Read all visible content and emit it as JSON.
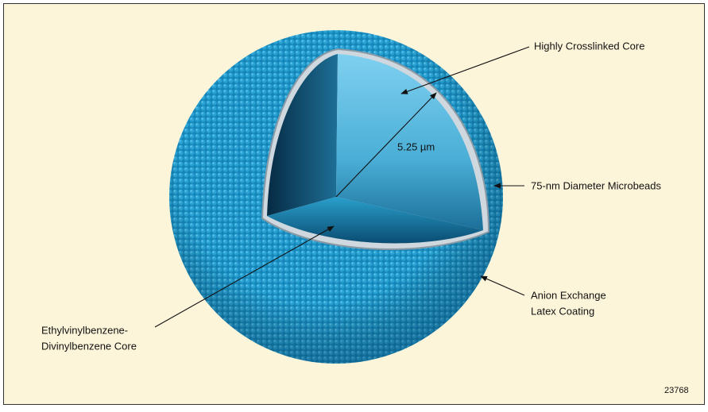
{
  "labels": {
    "core": "Highly Crosslinked Core",
    "diameter": "5.25 µm",
    "microbeads": "75-nm Diameter Microbeads",
    "coating": [
      "Anion Exchange",
      "Latex Coating"
    ],
    "substrate": [
      "Ethylvinylbenzene-",
      "Divinylbenzene Core"
    ],
    "figure_number": "23768"
  }
}
